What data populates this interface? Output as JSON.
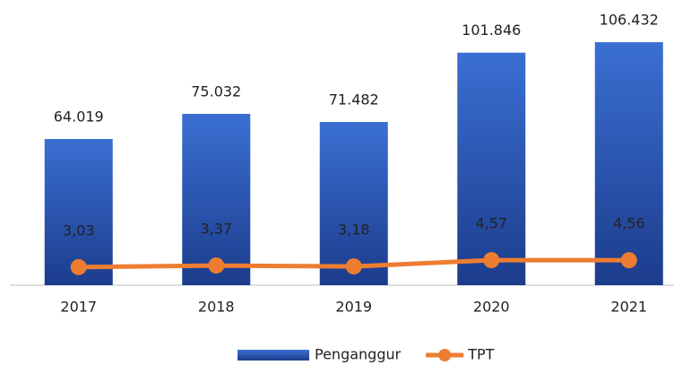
{
  "chart_data": {
    "type": "bar",
    "categories": [
      "2017",
      "2018",
      "2019",
      "2020",
      "2021"
    ],
    "series": [
      {
        "name": "Penganggur",
        "type": "bar",
        "color": "#3a6fd2",
        "values": [
          64019,
          75032,
          71482,
          101846,
          106432
        ],
        "value_labels": [
          "64.019",
          "75.032",
          "71.482",
          "101.846",
          "106.432"
        ]
      },
      {
        "name": "TPT",
        "type": "line",
        "axis": "y2",
        "color": "#ed7d31",
        "values": [
          3.03,
          3.37,
          3.18,
          4.57,
          4.56
        ],
        "value_labels": [
          "3,03",
          "3,37",
          "3,18",
          "4,57",
          "4,56"
        ]
      }
    ],
    "ylim": [
      0,
      120000
    ],
    "y2lim": [
      -1,
      60
    ],
    "legend": "bottom"
  }
}
